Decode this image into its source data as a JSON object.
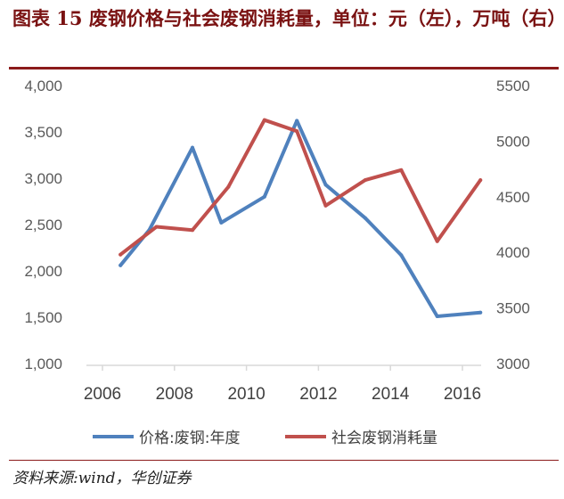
{
  "header": {
    "title": "图表 15 废钢价格与社会废钢消耗量，单位：元（左），万吨（右）"
  },
  "footer": {
    "source": "资料来源:wind，华创证券"
  },
  "chart_data": {
    "type": "line",
    "x": [
      2006.5,
      2007.3,
      2008,
      2009,
      2010,
      2010.5,
      2011.3,
      2012.2,
      2013.2,
      2014,
      2015.2,
      2016.5
    ],
    "x_ticks": [
      "2006",
      "2008",
      "2010",
      "2012",
      "2014",
      "2016"
    ],
    "left_axis": {
      "ylim": [
        1000,
        4000
      ],
      "ticks": [
        "1,000",
        "1,500",
        "2,000",
        "2,500",
        "3,000",
        "3,500",
        "4,000"
      ]
    },
    "right_axis": {
      "ylim": [
        3000,
        5500
      ],
      "ticks": [
        "3000",
        "3500",
        "4000",
        "4500",
        "5000",
        "5500"
      ]
    },
    "series": [
      {
        "name": "价格:废钢:年度",
        "axis": "left",
        "color": "#4f81bd",
        "x": [
          2006.5,
          2007.3,
          2008.5,
          2009.3,
          2010.5,
          2011.4,
          2012.2,
          2013.3,
          2014.3,
          2015.3,
          2016.5
        ],
        "values": [
          2060,
          2440,
          3330,
          2520,
          2800,
          3620,
          2930,
          2570,
          2170,
          1510,
          1550
        ]
      },
      {
        "name": "社会废钢消耗量",
        "axis": "right",
        "color": "#c0504d",
        "x": [
          2006.5,
          2007.5,
          2008.5,
          2009.5,
          2010.5,
          2011.4,
          2012.2,
          2013.3,
          2014.3,
          2015.3,
          2016.5
        ],
        "values": [
          3980,
          4230,
          4200,
          4590,
          5190,
          5090,
          4420,
          4650,
          4740,
          4100,
          4650
        ]
      }
    ]
  }
}
